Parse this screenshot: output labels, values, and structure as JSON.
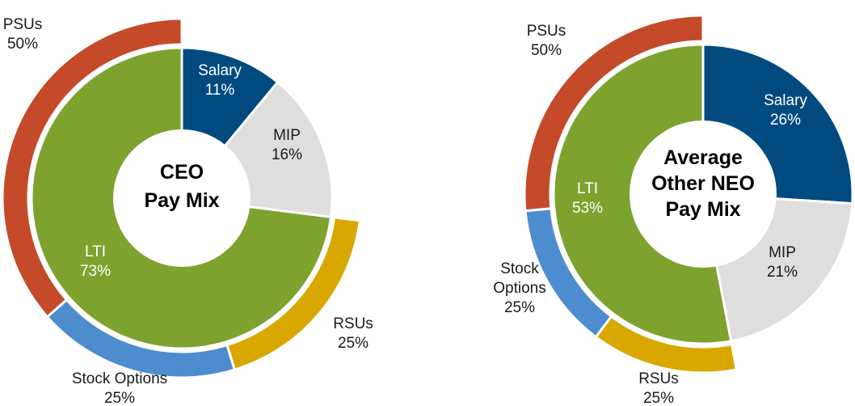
{
  "chart_data": [
    {
      "type": "pie",
      "title": [
        "CEO",
        "Pay Mix"
      ],
      "inner": [
        {
          "label": "Salary",
          "pct_label": "11%",
          "value": 11,
          "color": "#004a80",
          "text_color": "#ffffff"
        },
        {
          "label": "MIP",
          "pct_label": "16%",
          "value": 16,
          "color": "#dedede",
          "text_color": "#1a1a1a"
        },
        {
          "label": "LTI",
          "pct_label": "73%",
          "value": 73,
          "color": "#7da32e",
          "text_color": "#ffffff"
        }
      ],
      "outer": [
        {
          "label": "RSUs",
          "pct_label": "25%",
          "value": 25,
          "color": "#d9a800"
        },
        {
          "label": "Stock Options",
          "pct_label": "25%",
          "value": 25,
          "color": "#4d8dcf"
        },
        {
          "label": "PSUs",
          "pct_label": "50%",
          "value": 50,
          "color": "#c44a2a"
        }
      ]
    },
    {
      "type": "pie",
      "title": [
        "Average",
        "Other NEO",
        "Pay Mix"
      ],
      "inner": [
        {
          "label": "Salary",
          "pct_label": "26%",
          "value": 26,
          "color": "#004a80",
          "text_color": "#ffffff"
        },
        {
          "label": "MIP",
          "pct_label": "21%",
          "value": 21,
          "color": "#dedede",
          "text_color": "#1a1a1a"
        },
        {
          "label": "LTI",
          "pct_label": "53%",
          "value": 53,
          "color": "#7da32e",
          "text_color": "#ffffff"
        }
      ],
      "outer": [
        {
          "label": "RSUs",
          "pct_label": "25%",
          "value": 25,
          "color": "#d9a800"
        },
        {
          "label": "Stock Options",
          "pct_label": "25%",
          "value": 25,
          "color": "#4d8dcf"
        },
        {
          "label": "PSUs",
          "pct_label": "50%",
          "value": 50,
          "color": "#c44a2a"
        }
      ]
    }
  ]
}
